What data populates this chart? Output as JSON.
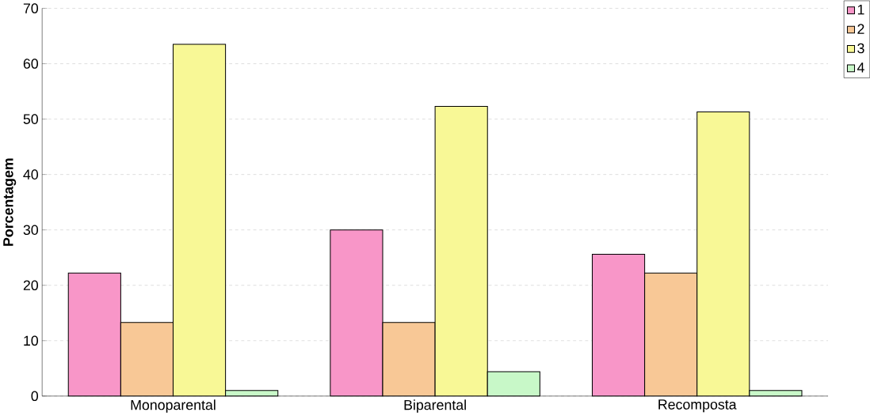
{
  "chart_data": {
    "type": "bar",
    "ylabel": "Porcentagem",
    "categories": [
      "Monoparental",
      "Biparental",
      "Recomposta"
    ],
    "series": [
      {
        "name": "1",
        "color": "#f896c8",
        "values": [
          22.2,
          30,
          25.6
        ]
      },
      {
        "name": "2",
        "color": "#f8c896",
        "values": [
          13.3,
          13.3,
          22.2
        ]
      },
      {
        "name": "3",
        "color": "#f8f896",
        "values": [
          63.5,
          52.3,
          51.3
        ]
      },
      {
        "name": "4",
        "color": "#c8f8c8",
        "values": [
          1,
          4.4,
          1
        ]
      }
    ],
    "ylim": [
      0,
      70
    ],
    "yticks": [
      0,
      10,
      20,
      30,
      40,
      50,
      60,
      70
    ],
    "grid": "y",
    "legend": "top right"
  }
}
